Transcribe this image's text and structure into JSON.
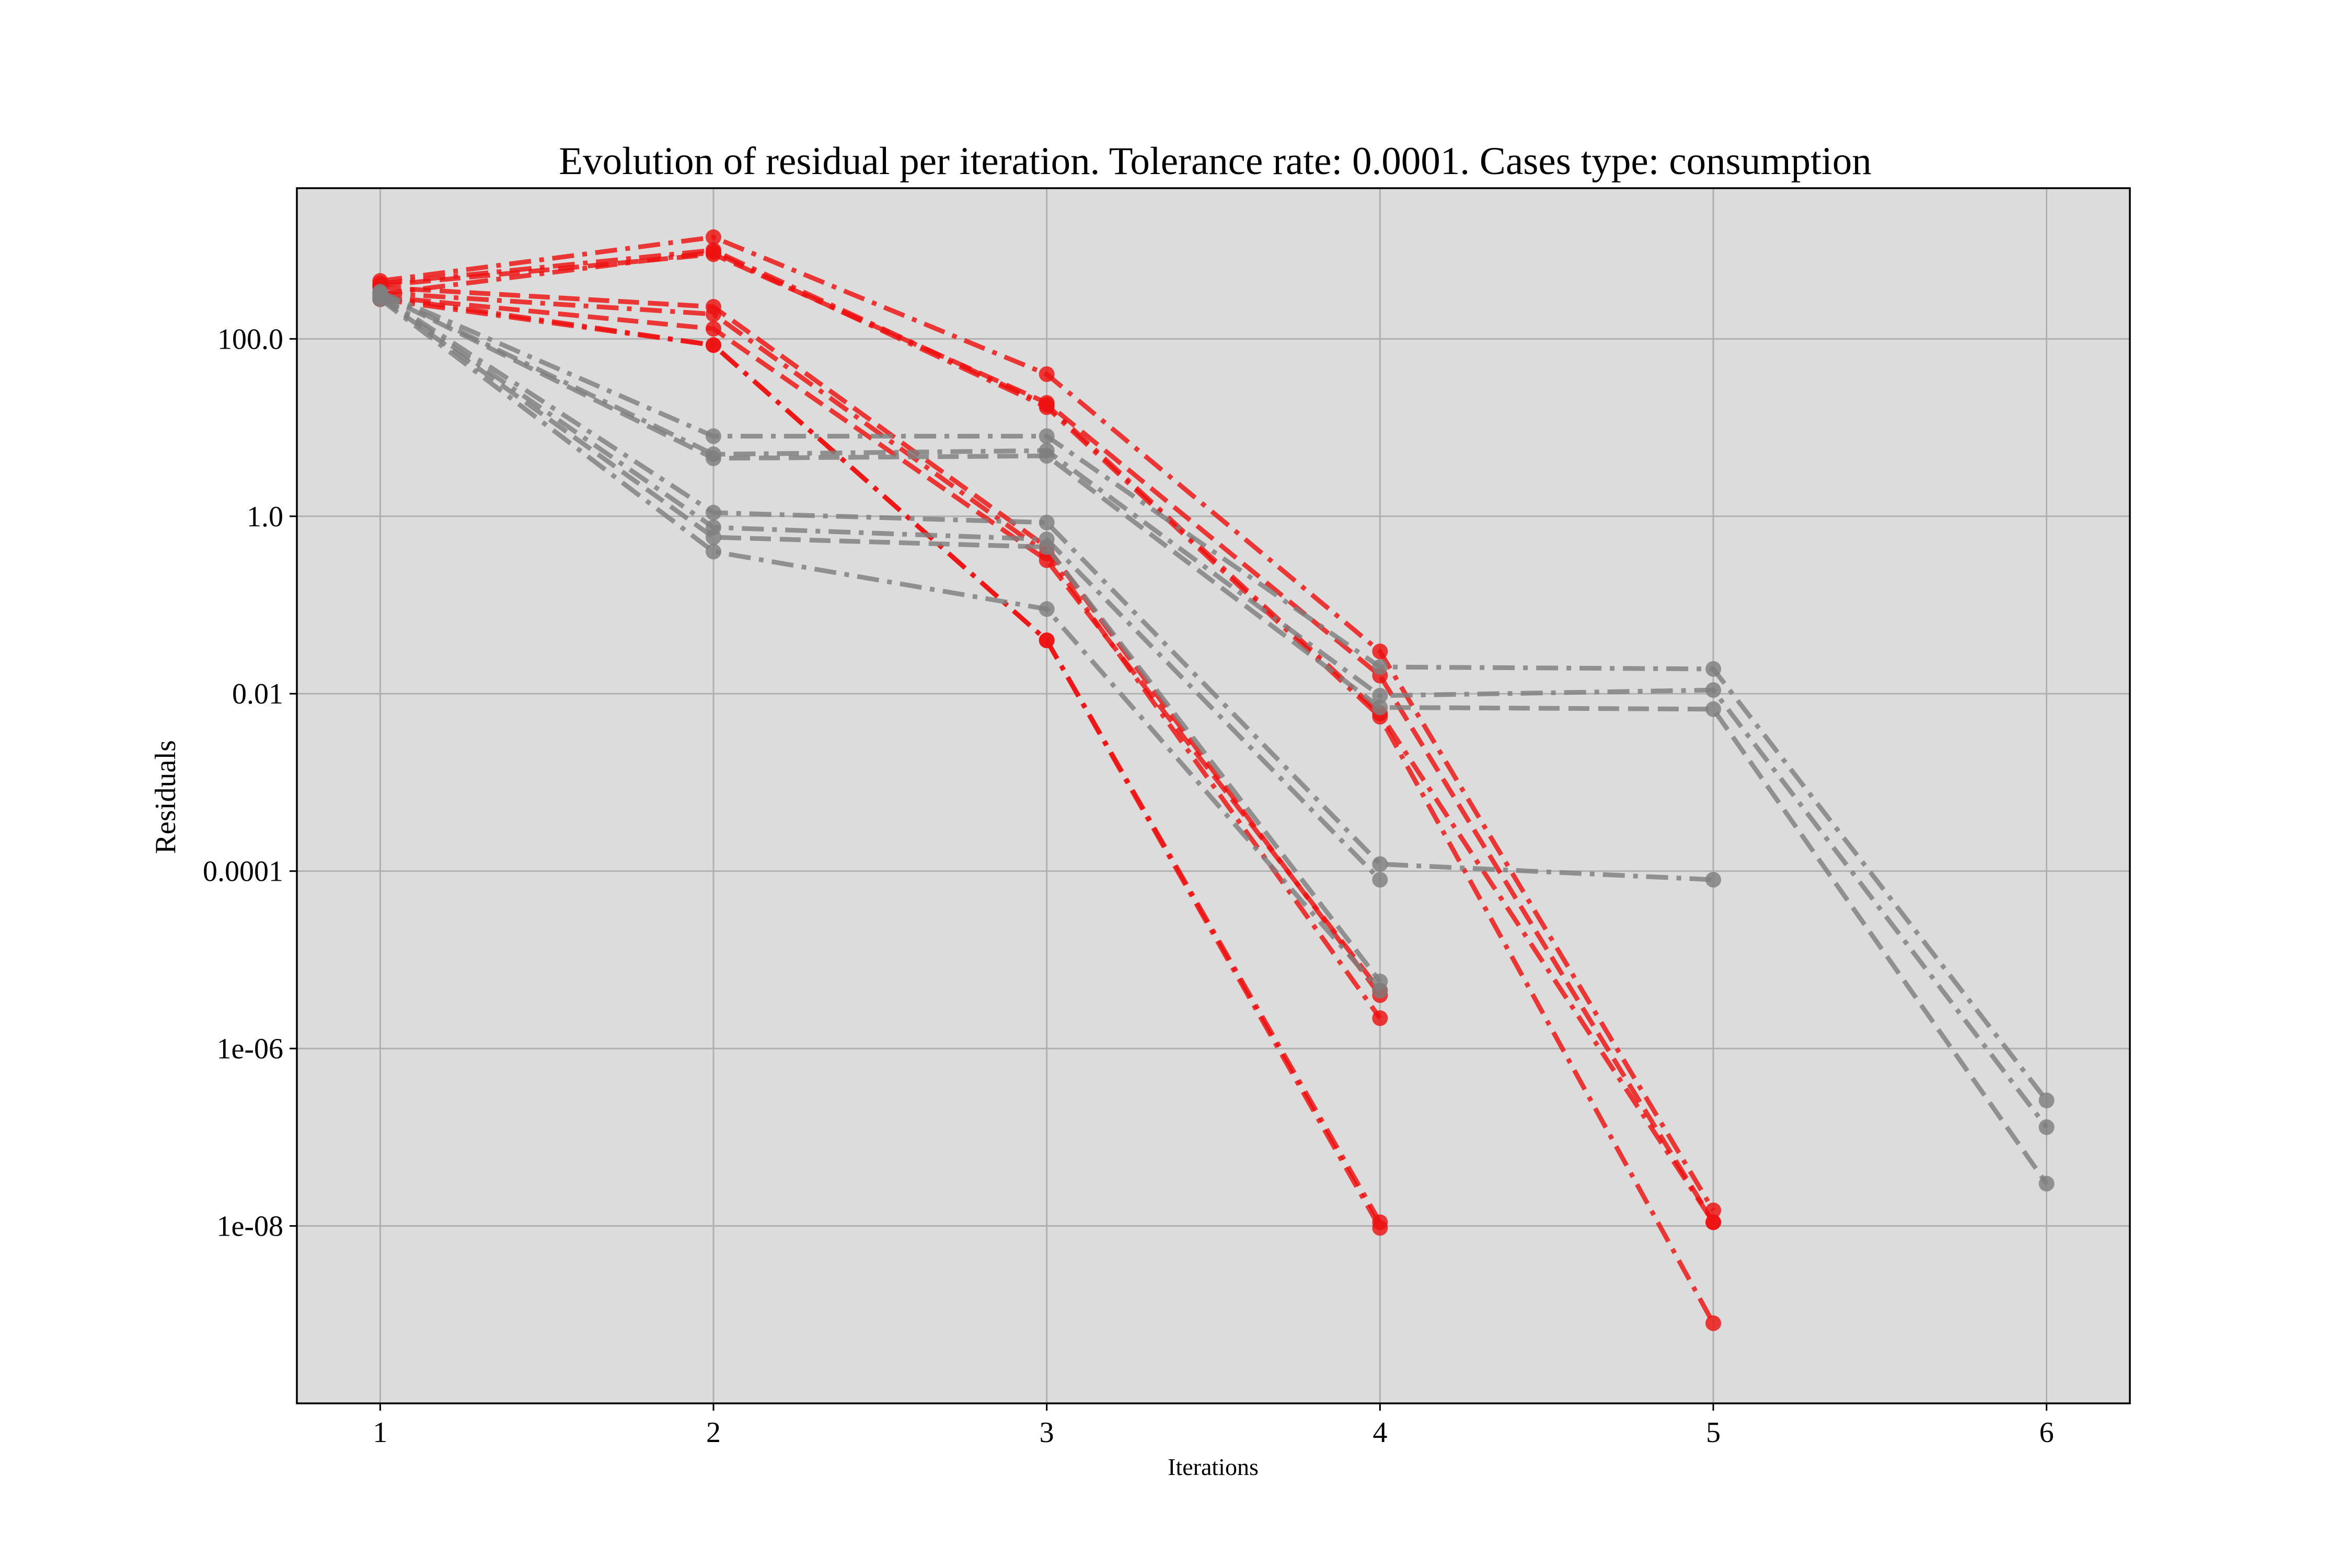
{
  "chart_data": {
    "type": "line",
    "title": "Evolution of residual per iteration. Tolerance rate: 0.0001. Cases type: consumption",
    "xlabel": "Iterations",
    "ylabel": "Residuals",
    "x_ticks": [
      "1",
      "2",
      "3",
      "4",
      "5",
      "6"
    ],
    "y_ticks": [
      {
        "value": 100,
        "label": "100.0"
      },
      {
        "value": 1,
        "label": "1.0"
      },
      {
        "value": 0.01,
        "label": "0.01"
      },
      {
        "value": 0.0001,
        "label": "0.0001"
      },
      {
        "value": 1e-06,
        "label": "1e-06"
      },
      {
        "value": 1e-08,
        "label": "1e-08"
      }
    ],
    "y_scale": "log",
    "xlim": [
      0.75,
      6.25
    ],
    "ylim": [
      1e-10,
      5000
    ],
    "grid": true,
    "background": "#dcdcdc",
    "colors": {
      "red": "#ee1111",
      "gray": "#7f7f7f"
    },
    "series": [
      {
        "color": "red",
        "style": "dashdot",
        "x": [
          1,
          2,
          3,
          4,
          5
        ],
        "y": [
          450,
          1400,
          40,
          0.03,
          1.5e-08
        ]
      },
      {
        "color": "red",
        "style": "dashdot",
        "x": [
          1,
          2,
          3,
          4,
          5
        ],
        "y": [
          420,
          1000,
          18,
          0.006,
          1.1e-08
        ]
      },
      {
        "color": "red",
        "style": "dashed",
        "x": [
          1,
          2,
          3,
          4,
          5
        ],
        "y": [
          400,
          900,
          19,
          0.016,
          1.1e-08
        ]
      },
      {
        "color": "red",
        "style": "dashdot",
        "x": [
          1,
          2,
          3,
          4,
          5
        ],
        "y": [
          320,
          950,
          17,
          0.0055,
          8e-10
        ]
      },
      {
        "color": "red",
        "style": "dashed",
        "x": [
          1,
          2,
          3,
          4
        ],
        "y": [
          380,
          230,
          0.45,
          4e-06
        ]
      },
      {
        "color": "red",
        "style": "dashdot",
        "x": [
          1,
          2,
          3,
          4
        ],
        "y": [
          330,
          190,
          0.38,
          2.2e-06
        ]
      },
      {
        "color": "red",
        "style": "dashed",
        "x": [
          1,
          2,
          3,
          4
        ],
        "y": [
          300,
          130,
          0.32,
          4.5e-06
        ]
      },
      {
        "color": "red",
        "style": "dashdot",
        "x": [
          1,
          2,
          3,
          4
        ],
        "y": [
          280,
          85,
          0.04,
          1.1e-08
        ]
      },
      {
        "color": "red",
        "style": "dashdot",
        "x": [
          1,
          2,
          3,
          4
        ],
        "y": [
          300,
          85,
          0.04,
          9.5e-09
        ]
      },
      {
        "color": "gray",
        "style": "dashdot",
        "x": [
          1,
          2,
          3,
          4,
          5,
          6
        ],
        "y": [
          340,
          8,
          8,
          0.02,
          0.019,
          2.6e-07
        ]
      },
      {
        "color": "gray",
        "style": "dashdot",
        "x": [
          1,
          2,
          3,
          4,
          5,
          6
        ],
        "y": [
          330,
          5,
          5.5,
          0.0095,
          0.011,
          1.3e-07
        ]
      },
      {
        "color": "gray",
        "style": "dashed",
        "x": [
          1,
          2,
          3,
          4,
          5,
          6
        ],
        "y": [
          320,
          4.5,
          4.8,
          0.007,
          0.0067,
          3e-08
        ]
      },
      {
        "color": "gray",
        "style": "dashdot",
        "x": [
          1,
          2,
          3,
          4,
          5
        ],
        "y": [
          310,
          1.1,
          0.85,
          0.00012,
          8e-05
        ]
      },
      {
        "color": "gray",
        "style": "dashdot",
        "x": [
          1,
          2,
          3,
          4
        ],
        "y": [
          300,
          0.75,
          0.55,
          8e-05
        ]
      },
      {
        "color": "gray",
        "style": "dashed",
        "x": [
          1,
          2,
          3,
          4
        ],
        "y": [
          290,
          0.58,
          0.45,
          5.7e-06
        ]
      },
      {
        "color": "gray",
        "style": "dashdot",
        "x": [
          1,
          2,
          3,
          4
        ],
        "y": [
          280,
          0.4,
          0.09,
          4.5e-06
        ]
      }
    ]
  }
}
